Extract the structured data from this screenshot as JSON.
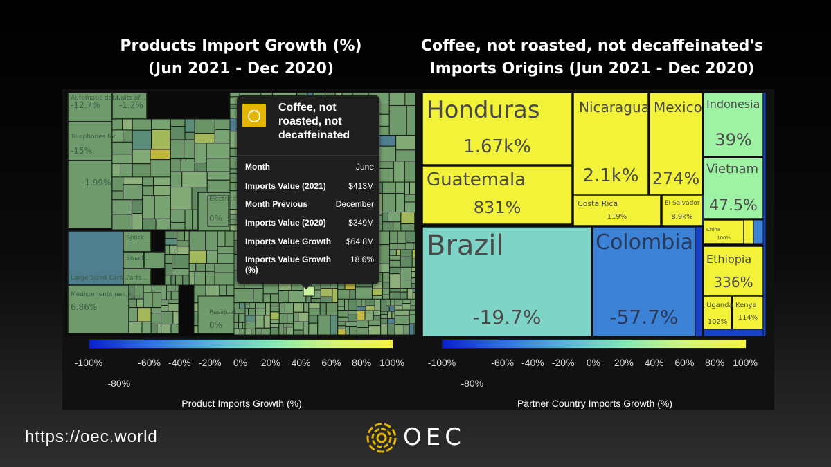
{
  "colors": {
    "yellow": "#f2f238",
    "yellow_green": "#d9f25c",
    "light_green": "#9ef2a4",
    "teal": "#7fd4c8",
    "blue": "#3c82d6",
    "dark_blue": "#1a44c8",
    "muted_green": "#6f9a6c",
    "colorscale": [
      "#0b1fd6",
      "#2f6fe0",
      "#54b4d9",
      "#86e8b8",
      "#d2f57a",
      "#f6f53c"
    ]
  },
  "chart_data": [
    {
      "type": "treemap",
      "title_line1": "Products Import Growth (%)",
      "title_line2": "(Jun 2021 - Dec 2020)",
      "colorbar_title": "Product Imports Growth (%)",
      "colorbar_ticks": [
        "-100%",
        "-80%",
        "-60%",
        "-40%",
        "-20%",
        "0%",
        "20%",
        "40%",
        "60%",
        "80%",
        "100%"
      ],
      "colorbar_range": [
        -100,
        100
      ],
      "labels": [
        {
          "name": "Automatic data...",
          "value": "-12.7%"
        },
        {
          "name": "Units of...",
          "value": "-1.2%"
        },
        {
          "name": "Telephones for...",
          "value": "-15%"
        },
        {
          "name": "",
          "value": "-1.99%"
        },
        {
          "name": "Electrical...",
          "value": "0%"
        },
        {
          "name": "Spork...",
          "value": ""
        },
        {
          "name": "Small...",
          "value": ""
        },
        {
          "name": "Parts...",
          "value": ""
        },
        {
          "name": "Large Sized Cars...",
          "value": ""
        },
        {
          "name": "Medicaments nes, in...",
          "value": "6.86%"
        },
        {
          "name": "Residual...",
          "value": "0%"
        }
      ],
      "tooltip": {
        "icon": "coffee-cup-icon",
        "title": "Coffee, not roasted, not decaffeinated",
        "rows": [
          {
            "key": "Month",
            "value": "June"
          },
          {
            "key": "Imports Value (2021)",
            "value": "$413M"
          },
          {
            "key": "Month Previous",
            "value": "December"
          },
          {
            "key": "Imports Value (2020)",
            "value": "$349M"
          },
          {
            "key": "Imports Value Growth",
            "value": "$64.8M"
          },
          {
            "key": "Imports Value Growth (%)",
            "value": "18.6%"
          }
        ]
      }
    },
    {
      "type": "treemap",
      "title_line1": "Coffee, not roasted, not decaffeinated's",
      "title_line2": "Imports Origins (Jun 2021 - Dec 2020)",
      "colorbar_title": "Partner Country Imports Growth (%)",
      "colorbar_ticks": [
        "-100%",
        "-80%",
        "-60%",
        "-40%",
        "-20%",
        "0%",
        "20%",
        "40%",
        "60%",
        "80%",
        "100%"
      ],
      "colorbar_range": [
        -100,
        100
      ],
      "countries": [
        {
          "name": "Honduras",
          "growth_label": "1.67k%",
          "growth": 1670
        },
        {
          "name": "Nicaragua",
          "growth_label": "2.1k%",
          "growth": 2100
        },
        {
          "name": "Mexico",
          "growth_label": "274%",
          "growth": 274
        },
        {
          "name": "Guatemala",
          "growth_label": "831%",
          "growth": 831
        },
        {
          "name": "Costa Rica",
          "growth_label": "119%",
          "growth": 119
        },
        {
          "name": "El Salvador",
          "growth_label": "8.9k%",
          "growth": 8900
        },
        {
          "name": "Brazil",
          "growth_label": "-19.7%",
          "growth": -19.7
        },
        {
          "name": "Colombia",
          "growth_label": "-57.7%",
          "growth": -57.7
        },
        {
          "name": "Indonesia",
          "growth_label": "39%",
          "growth": 39
        },
        {
          "name": "Vietnam",
          "growth_label": "47.5%",
          "growth": 47.5
        },
        {
          "name": "China",
          "growth_label": "100%",
          "growth": 100
        },
        {
          "name": "Ethiopia",
          "growth_label": "336%",
          "growth": 336
        },
        {
          "name": "Uganda",
          "growth_label": "102%",
          "growth": 102
        },
        {
          "name": "Kenya",
          "growth_label": "114%",
          "growth": 114
        }
      ]
    }
  ],
  "footer": {
    "url": "https://oec.world",
    "logo_text": "OEC"
  }
}
